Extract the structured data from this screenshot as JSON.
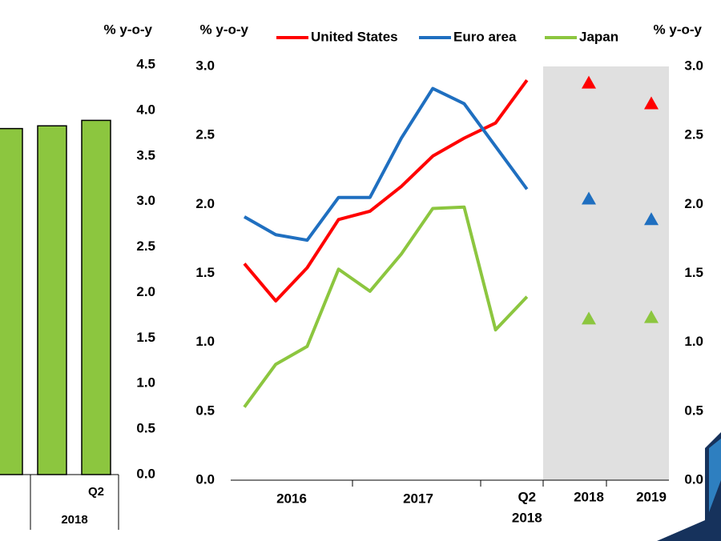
{
  "chart_data": [
    {
      "type": "bar",
      "axis_label": "% y-o-y",
      "categories": [
        null,
        null,
        "Q2"
      ],
      "group_label": "2018",
      "values": [
        3.8,
        3.83,
        3.89
      ],
      "color": "#8cc63f",
      "ylim": [
        0,
        4.5
      ],
      "yticks": [
        {
          "value": 0,
          "label": "0.0"
        },
        0.5,
        {
          "value": 1,
          "label": "1.0"
        },
        1.5,
        {
          "value": 2,
          "label": "2.0"
        },
        2.5,
        {
          "value": 3,
          "label": "3.0"
        },
        3.5,
        {
          "value": 4,
          "label": "4.0"
        },
        4.5
      ]
    },
    {
      "type": "line",
      "axis_label": "% y-o-y",
      "y2_axis_label": "% y-o-y",
      "categories": [
        null,
        null,
        null,
        null,
        null,
        null,
        null,
        null,
        null,
        "Q2"
      ],
      "year_labels": [
        "2016",
        "2017",
        "2018"
      ],
      "forecast_categories": [
        "2018",
        "2019"
      ],
      "series": [
        {
          "name": "United States",
          "color": "#ff0000",
          "values": [
            1.57,
            1.3,
            1.54,
            1.89,
            1.95,
            2.13,
            2.35,
            2.48,
            2.59,
            2.9
          ],
          "forecast": [
            2.88,
            2.73
          ]
        },
        {
          "name": "Euro area",
          "color": "#1f6fc0",
          "values": [
            1.91,
            1.78,
            1.74,
            2.05,
            2.05,
            2.48,
            2.84,
            2.73,
            2.42,
            2.11
          ],
          "forecast": [
            2.04,
            1.89
          ]
        },
        {
          "name": "Japan",
          "color": "#8cc63f",
          "values": [
            0.53,
            0.84,
            0.97,
            1.53,
            1.37,
            1.64,
            1.97,
            1.98,
            1.09,
            1.33
          ],
          "forecast": [
            1.17,
            1.18
          ]
        }
      ],
      "ylim": [
        0,
        3
      ],
      "yticks": [
        {
          "value": 0,
          "label": "0.0"
        },
        0.5,
        {
          "value": 1,
          "label": "1.0"
        },
        1.5,
        {
          "value": 2,
          "label": "2.0"
        },
        2.5,
        {
          "value": 3,
          "label": "3.0"
        }
      ],
      "y2lim": [
        0,
        3
      ],
      "y2ticks": [
        {
          "value": 0,
          "label": "0.0"
        },
        0.5,
        {
          "value": 1,
          "label": "1.0"
        },
        1.5,
        {
          "value": 2,
          "label": "2.0"
        },
        2.5,
        {
          "value": 3,
          "label": "3.0"
        }
      ]
    }
  ]
}
